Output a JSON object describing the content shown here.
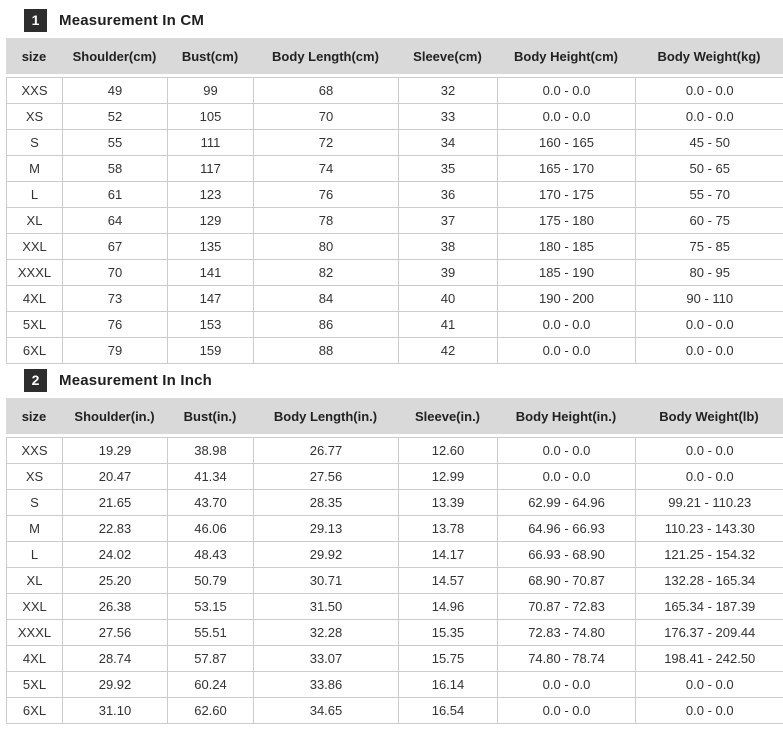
{
  "colors": {
    "header_bg": "#d9d9d9",
    "badge_bg": "#2d2d2d",
    "badge_text": "#ffffff",
    "border": "#cccccc",
    "text": "#333333"
  },
  "chart_data": [
    {
      "type": "table",
      "badge": "1",
      "title": "Measurement In CM",
      "columns": [
        "size",
        "Shoulder(cm)",
        "Bust(cm)",
        "Body Length(cm)",
        "Sleeve(cm)",
        "Body Height(cm)",
        "Body Weight(kg)"
      ],
      "rows": [
        [
          "XXS",
          "49",
          "99",
          "68",
          "32",
          "0.0 - 0.0",
          "0.0 - 0.0"
        ],
        [
          "XS",
          "52",
          "105",
          "70",
          "33",
          "0.0 - 0.0",
          "0.0 - 0.0"
        ],
        [
          "S",
          "55",
          "111",
          "72",
          "34",
          "160 - 165",
          "45 - 50"
        ],
        [
          "M",
          "58",
          "117",
          "74",
          "35",
          "165 - 170",
          "50 - 65"
        ],
        [
          "L",
          "61",
          "123",
          "76",
          "36",
          "170 - 175",
          "55 - 70"
        ],
        [
          "XL",
          "64",
          "129",
          "78",
          "37",
          "175 - 180",
          "60 - 75"
        ],
        [
          "XXL",
          "67",
          "135",
          "80",
          "38",
          "180 - 185",
          "75 - 85"
        ],
        [
          "XXXL",
          "70",
          "141",
          "82",
          "39",
          "185 - 190",
          "80 - 95"
        ],
        [
          "4XL",
          "73",
          "147",
          "84",
          "40",
          "190 - 200",
          "90 - 110"
        ],
        [
          "5XL",
          "76",
          "153",
          "86",
          "41",
          "0.0 - 0.0",
          "0.0 - 0.0"
        ],
        [
          "6XL",
          "79",
          "159",
          "88",
          "42",
          "0.0 - 0.0",
          "0.0 - 0.0"
        ]
      ]
    },
    {
      "type": "table",
      "badge": "2",
      "title": "Measurement In Inch",
      "columns": [
        "size",
        "Shoulder(in.)",
        "Bust(in.)",
        "Body Length(in.)",
        "Sleeve(in.)",
        "Body Height(in.)",
        "Body Weight(lb)"
      ],
      "rows": [
        [
          "XXS",
          "19.29",
          "38.98",
          "26.77",
          "12.60",
          "0.0 - 0.0",
          "0.0 - 0.0"
        ],
        [
          "XS",
          "20.47",
          "41.34",
          "27.56",
          "12.99",
          "0.0 - 0.0",
          "0.0 - 0.0"
        ],
        [
          "S",
          "21.65",
          "43.70",
          "28.35",
          "13.39",
          "62.99 - 64.96",
          "99.21 - 110.23"
        ],
        [
          "M",
          "22.83",
          "46.06",
          "29.13",
          "13.78",
          "64.96 - 66.93",
          "110.23 - 143.30"
        ],
        [
          "L",
          "24.02",
          "48.43",
          "29.92",
          "14.17",
          "66.93 - 68.90",
          "121.25 - 154.32"
        ],
        [
          "XL",
          "25.20",
          "50.79",
          "30.71",
          "14.57",
          "68.90 - 70.87",
          "132.28 - 165.34"
        ],
        [
          "XXL",
          "26.38",
          "53.15",
          "31.50",
          "14.96",
          "70.87 - 72.83",
          "165.34 - 187.39"
        ],
        [
          "XXXL",
          "27.56",
          "55.51",
          "32.28",
          "15.35",
          "72.83 - 74.80",
          "176.37 - 209.44"
        ],
        [
          "4XL",
          "28.74",
          "57.87",
          "33.07",
          "15.75",
          "74.80 - 78.74",
          "198.41 - 242.50"
        ],
        [
          "5XL",
          "29.92",
          "60.24",
          "33.86",
          "16.14",
          "0.0 - 0.0",
          "0.0 - 0.0"
        ],
        [
          "6XL",
          "31.10",
          "62.60",
          "34.65",
          "16.54",
          "0.0 - 0.0",
          "0.0 - 0.0"
        ]
      ]
    }
  ]
}
